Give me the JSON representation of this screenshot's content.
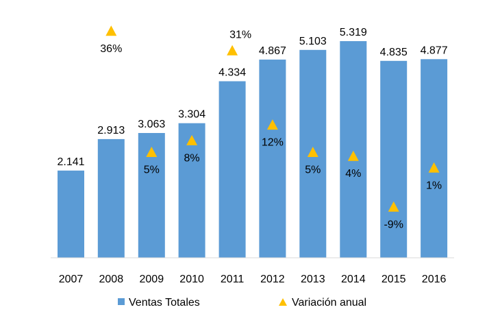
{
  "chart_data": {
    "type": "bar",
    "categories": [
      "2007",
      "2008",
      "2009",
      "2010",
      "2011",
      "2012",
      "2013",
      "2014",
      "2015",
      "2016"
    ],
    "series": [
      {
        "name": "Ventas Totales",
        "type": "bar",
        "values": [
          2141,
          2913,
          3063,
          3304,
          4334,
          4867,
          5103,
          5319,
          4835,
          4877
        ],
        "labels": [
          "2.141",
          "2.913",
          "3.063",
          "3.304",
          "4.334",
          "4.867",
          "5.103",
          "5.319",
          "4.835",
          "4.877"
        ],
        "color": "#5B9BD5"
      },
      {
        "name": "Variación anual",
        "type": "scatter",
        "marker": "triangle",
        "values": [
          null,
          36,
          5,
          8,
          31,
          12,
          5,
          4,
          -9,
          1
        ],
        "labels": [
          "",
          "36%",
          "5%",
          "8%",
          "31%",
          "12%",
          "5%",
          "4%",
          "-9%",
          "1%"
        ],
        "color": "#FFC000"
      }
    ],
    "xlabel": "",
    "ylabel": "",
    "ylim": [
      0,
      5500
    ],
    "secondary_ylim": [
      -15,
      40
    ],
    "grid": false,
    "legend": "bottom"
  }
}
